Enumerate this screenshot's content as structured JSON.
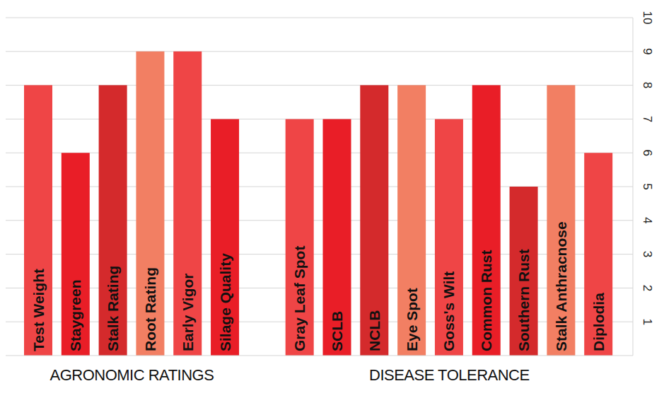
{
  "chart_data": {
    "type": "bar",
    "categories": [
      "Test Weight",
      "Staygreen",
      "Stalk Rating",
      "Root Rating",
      "Early Vigor",
      "Silage Quality",
      null,
      "Gray Leaf Spot",
      "SCLB",
      "NCLB",
      "Eye Spot",
      "Goss's Wilt",
      "Common Rust",
      "Southern Rust",
      "Stalk Anthracnose",
      "Diplodia"
    ],
    "values": [
      8,
      6,
      8,
      9,
      9,
      7,
      null,
      7,
      7,
      8,
      8,
      7,
      8,
      5,
      8,
      6
    ],
    "colors": [
      "#ef4546",
      "#e91e27",
      "#d42a2c",
      "#f27f63",
      "#ef4546",
      "#e91e27",
      null,
      "#ef4546",
      "#e91e27",
      "#d42a2c",
      "#f27f63",
      "#ef4546",
      "#e91e27",
      "#d42a2c",
      "#f27f63",
      "#ef4546"
    ],
    "groups": [
      {
        "name": "AGRONOMIC RATINGS",
        "size": 6
      },
      {
        "name": "DISEASE TOLERANCE",
        "size": 9
      }
    ],
    "ylim": [
      0,
      10
    ],
    "yticks": [
      1,
      2,
      3,
      4,
      5,
      6,
      7,
      8,
      9,
      10
    ],
    "grid": true
  }
}
